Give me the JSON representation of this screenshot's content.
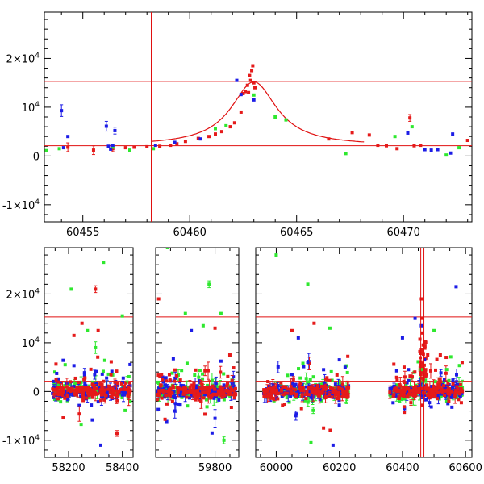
{
  "colors": {
    "red": "#e51a1a",
    "green": "#2ee82e",
    "blue": "#1c1ce6",
    "reference_line": "#e01010",
    "axis": "#000000"
  },
  "chart_data": [
    {
      "type": "scatter",
      "panel": "top",
      "title": "",
      "xlabel": "",
      "ylabel": "",
      "xlim": [
        60453.2,
        60473.2
      ],
      "ylim": [
        -13500,
        29500
      ],
      "x_ticks": [
        60455,
        60460,
        60465,
        60470
      ],
      "x_tick_labels": [
        "60455",
        "60460",
        "60465",
        "60470"
      ],
      "y_ticks": [
        -10000,
        0,
        10000,
        20000
      ],
      "y_tick_labels": [
        {
          "mantissa": "-1×10",
          "exp": "4"
        },
        {
          "mantissa": "0",
          "exp": ""
        },
        {
          "mantissa": "10",
          "exp": "4"
        },
        {
          "mantissa": "2×10",
          "exp": "4"
        }
      ],
      "horizontal_lines": [
        15300,
        2100
      ],
      "vertical_lines": [
        60458.2,
        60468.2
      ],
      "model_curve": {
        "peak_x": 60463.0,
        "peak_y": 15200,
        "baseline": 2100,
        "width": 1.3
      },
      "series": [
        {
          "color": "red",
          "points": [
            [
              60454.3,
              1800,
              900
            ],
            [
              60455.5,
              1200,
              900
            ],
            [
              60456.4,
              1500,
              600
            ],
            [
              60457.0,
              1700,
              0
            ],
            [
              60457.4,
              1800,
              0
            ],
            [
              60458.0,
              1900,
              0
            ],
            [
              60458.6,
              2000,
              0
            ],
            [
              60459.1,
              2200,
              0
            ],
            [
              60459.4,
              2500,
              0
            ],
            [
              60459.8,
              3000,
              0
            ],
            [
              60460.4,
              3600,
              0
            ],
            [
              60460.9,
              4000,
              0
            ],
            [
              60461.2,
              4500,
              0
            ],
            [
              60461.5,
              5000,
              0
            ],
            [
              60461.9,
              6000,
              0
            ],
            [
              60462.1,
              6800,
              0
            ],
            [
              60462.4,
              9000,
              0
            ],
            [
              60462.5,
              12800,
              0
            ],
            [
              60462.6,
              13200,
              0
            ],
            [
              60462.7,
              14500,
              0
            ],
            [
              60462.75,
              13000,
              0
            ],
            [
              60462.8,
              16500,
              0
            ],
            [
              60462.85,
              15500,
              0
            ],
            [
              60462.9,
              17500,
              0
            ],
            [
              60462.95,
              18500,
              0
            ],
            [
              60463.0,
              15000,
              0
            ],
            [
              60463.05,
              14000,
              0
            ],
            [
              60466.5,
              3500,
              0
            ],
            [
              60467.6,
              4800,
              0
            ],
            [
              60468.4,
              4300,
              0
            ],
            [
              60468.8,
              2200,
              0
            ],
            [
              60469.2,
              2100,
              0
            ],
            [
              60469.7,
              1500,
              0
            ],
            [
              60470.3,
              7800,
              700
            ],
            [
              60470.5,
              2100,
              0
            ],
            [
              60470.8,
              2200,
              0
            ],
            [
              60473.0,
              3200,
              0
            ]
          ]
        },
        {
          "color": "green",
          "points": [
            [
              60453.3,
              1100,
              0
            ],
            [
              60453.9,
              1500,
              0
            ],
            [
              60456.4,
              1800,
              0
            ],
            [
              60457.2,
              1200,
              0
            ],
            [
              60458.3,
              1500,
              0
            ],
            [
              60461.2,
              5600,
              0
            ],
            [
              60461.7,
              6200,
              0
            ],
            [
              60463.0,
              12500,
              0
            ],
            [
              60464.0,
              8000,
              0
            ],
            [
              60464.5,
              7400,
              0
            ],
            [
              60467.3,
              500,
              0
            ],
            [
              60469.6,
              4000,
              0
            ],
            [
              60470.4,
              6000,
              0
            ],
            [
              60472.0,
              200,
              0
            ],
            [
              60472.6,
              1700,
              0
            ]
          ]
        },
        {
          "color": "blue",
          "points": [
            [
              60454.0,
              9300,
              1200
            ],
            [
              60454.1,
              1700,
              0
            ],
            [
              60454.3,
              4000,
              0
            ],
            [
              60456.1,
              6100,
              1000
            ],
            [
              60456.2,
              2000,
              0
            ],
            [
              60456.3,
              1400,
              0
            ],
            [
              60456.4,
              2200,
              0
            ],
            [
              60456.5,
              5200,
              700
            ],
            [
              60458.4,
              2200,
              0
            ],
            [
              60459.3,
              2800,
              0
            ],
            [
              60460.5,
              3500,
              0
            ],
            [
              60462.2,
              15500,
              0
            ],
            [
              60462.4,
              12600,
              0
            ],
            [
              60463.0,
              11500,
              0
            ],
            [
              60470.2,
              4700,
              0
            ],
            [
              60471.0,
              1300,
              0
            ],
            [
              60471.3,
              1200,
              0
            ],
            [
              60471.6,
              1300,
              0
            ],
            [
              60472.2,
              600,
              0
            ],
            [
              60472.3,
              4500,
              0
            ]
          ]
        }
      ]
    },
    {
      "type": "scatter",
      "panel": "bottom",
      "title": "",
      "xlabel": "",
      "ylabel": "",
      "x_segments": [
        {
          "range": [
            58110,
            58440
          ]
        },
        {
          "range": [
            59600,
            59880
          ]
        },
        {
          "range": [
            59935,
            60620
          ]
        }
      ],
      "ylim": [
        -13500,
        29500
      ],
      "x_ticks": [
        58200,
        58400,
        59800,
        60000,
        60200,
        60400,
        60600
      ],
      "x_tick_labels": [
        "58200",
        "58400",
        "59800",
        "60000",
        "60200",
        "60400",
        "60600"
      ],
      "y_ticks": [
        -10000,
        0,
        10000,
        20000
      ],
      "y_tick_labels": [
        {
          "mantissa": "-1×10",
          "exp": "4"
        },
        {
          "mantissa": "0",
          "exp": ""
        },
        {
          "mantissa": "10",
          "exp": "4"
        },
        {
          "mantissa": "2×10",
          "exp": "4"
        }
      ],
      "horizontal_lines": [
        15300,
        2100
      ],
      "vertical_lines": [
        60458,
        60468
      ],
      "seasons": [
        {
          "start": 58140,
          "end": 58430,
          "segment": 0
        },
        {
          "start": 59605,
          "end": 59870,
          "segment": 1
        },
        {
          "start": 59960,
          "end": 60230,
          "segment": 2
        },
        {
          "start": 60360,
          "end": 60590,
          "segment": 2
        }
      ],
      "series": [
        {
          "color": "red",
          "points": [
            [
              58300,
              21000,
              700
            ],
            [
              58250,
              14000,
              0
            ],
            [
              58310,
              12500,
              0
            ],
            [
              58220,
              11500,
              0
            ],
            [
              58380,
              -8600,
              600
            ],
            [
              58180,
              -5400,
              0
            ],
            [
              58240,
              -4600,
              1500
            ],
            [
              59610,
              19000,
              0
            ],
            [
              59800,
              13000,
              0
            ],
            [
              59850,
              7500,
              0
            ],
            [
              60050,
              12500,
              0
            ],
            [
              60120,
              14000,
              0
            ],
            [
              60080,
              -3500,
              0
            ],
            [
              60150,
              -7500,
              0
            ],
            [
              60460,
              19000,
              0
            ],
            [
              60462,
              15000,
              0
            ],
            [
              60464,
              12000,
              0
            ],
            [
              60463,
              8500,
              0
            ],
            [
              60480,
              7500,
              0
            ],
            [
              60520,
              7500,
              0
            ]
          ]
        },
        {
          "color": "green",
          "points": [
            [
              58210,
              21000,
              0
            ],
            [
              58330,
              26500,
              0
            ],
            [
              58400,
              15500,
              0
            ],
            [
              58270,
              12500,
              0
            ],
            [
              58300,
              9000,
              1200
            ],
            [
              59640,
              29500,
              0
            ],
            [
              59780,
              22000,
              700
            ],
            [
              59700,
              16000,
              0
            ],
            [
              59760,
              13500,
              0
            ],
            [
              59820,
              16000,
              0
            ],
            [
              59830,
              -10000,
              700
            ],
            [
              60000,
              28000,
              0
            ],
            [
              60100,
              22000,
              0
            ],
            [
              60170,
              13000,
              0
            ],
            [
              60110,
              -10500,
              0
            ],
            [
              60500,
              12500,
              0
            ],
            [
              60540,
              4500,
              0
            ],
            [
              60460,
              4500,
              0
            ]
          ]
        },
        {
          "color": "blue",
          "points": [
            [
              58180,
              6400,
              0
            ],
            [
              58220,
              5300,
              0
            ],
            [
              58320,
              -11000,
              0
            ],
            [
              59720,
              12500,
              0
            ],
            [
              59790,
              -8500,
              0
            ],
            [
              59800,
              -5500,
              1800
            ],
            [
              60070,
              11000,
              0
            ],
            [
              60100,
              6000,
              0
            ],
            [
              60180,
              -11000,
              0
            ],
            [
              60200,
              6500,
              0
            ],
            [
              60400,
              11000,
              0
            ],
            [
              60440,
              15000,
              0
            ],
            [
              60460,
              13500,
              0
            ],
            [
              60570,
              21500,
              0
            ],
            [
              60470,
              6500,
              0
            ]
          ]
        }
      ]
    }
  ]
}
